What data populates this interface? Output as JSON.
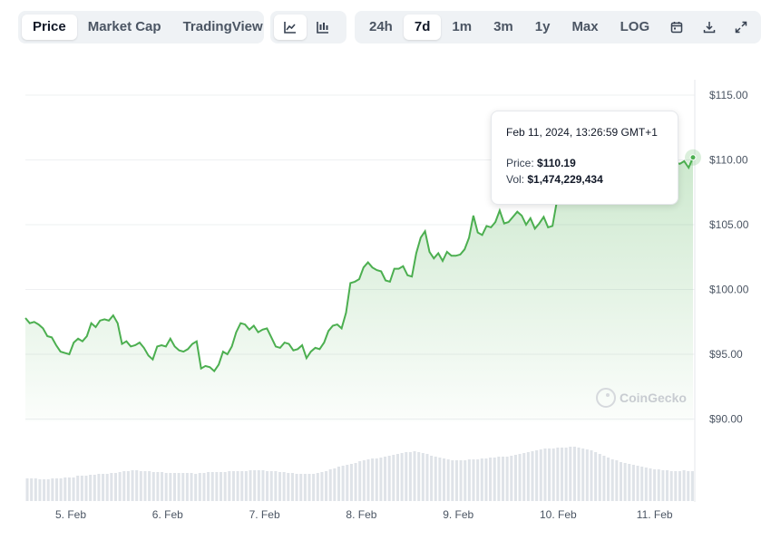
{
  "toolbar": {
    "view_tabs": [
      {
        "label": "Price",
        "active": true
      },
      {
        "label": "Market Cap",
        "active": false
      },
      {
        "label": "TradingView",
        "active": false
      }
    ],
    "chart_style_icons": [
      {
        "icon": "line-chart-icon",
        "active": true
      },
      {
        "icon": "candlestick-chart-icon",
        "active": false
      }
    ],
    "range_tabs": [
      {
        "label": "24h",
        "active": false
      },
      {
        "label": "7d",
        "active": true
      },
      {
        "label": "1m",
        "active": false
      },
      {
        "label": "3m",
        "active": false
      },
      {
        "label": "1y",
        "active": false
      },
      {
        "label": "Max",
        "active": false
      },
      {
        "label": "LOG",
        "active": false
      }
    ],
    "action_icons": [
      "calendar-icon",
      "download-icon",
      "expand-icon"
    ]
  },
  "tooltip": {
    "date": "Feb 11, 2024, 13:26:59 GMT+1",
    "price_label": "Price:",
    "price_value": "$110.19",
    "vol_label": "Vol:",
    "vol_value": "$1,474,229,434"
  },
  "watermark": "CoinGecko",
  "colors": {
    "line": "#4caf50",
    "fill": "#4caf50",
    "volume": "#dfe3e8",
    "grid": "#eef0f2"
  },
  "chart_data": {
    "type": "line",
    "y_axis_position": "right",
    "ylim": [
      85,
      115
    ],
    "yticks": [
      90,
      95,
      100,
      105,
      110,
      115
    ],
    "ytick_labels": [
      "$90.00",
      "$95.00",
      "$100.00",
      "$105.00",
      "$110.00",
      "$115.00"
    ],
    "x_range": [
      "Feb 4 14:00",
      "Feb 11 13:27"
    ],
    "x_ticks": [
      "5. Feb",
      "6. Feb",
      "7. Feb",
      "8. Feb",
      "9. Feb",
      "10. Feb",
      "11. Feb"
    ],
    "series": [
      {
        "values": [
          97.8,
          97.4,
          97.5,
          97.3,
          97.0,
          96.4,
          96.3,
          95.7,
          95.2,
          95.1,
          95.0,
          95.9,
          96.2,
          96.0,
          96.4,
          97.4,
          97.1,
          97.6,
          97.7,
          97.6,
          98.0,
          97.4,
          95.8,
          96.0,
          95.6,
          95.7,
          95.9,
          95.5,
          94.9,
          94.6,
          95.6,
          95.7,
          95.6,
          96.2,
          95.6,
          95.3,
          95.2,
          95.4,
          95.8,
          96.0,
          93.9,
          94.1,
          94.0,
          93.7,
          94.2,
          95.2,
          95.0,
          95.6,
          96.7,
          97.4,
          97.3,
          96.9,
          97.2,
          96.7,
          96.9,
          97.0,
          96.3,
          95.6,
          95.5,
          95.9,
          95.8,
          95.3,
          95.4,
          95.7,
          94.7,
          95.2,
          95.5,
          95.4,
          95.9,
          96.8,
          97.2,
          97.3,
          97.0,
          98.2,
          100.5,
          100.6,
          100.8,
          101.7,
          102.1,
          101.7,
          101.5,
          101.4,
          100.7,
          100.6,
          101.6,
          101.6,
          101.8,
          101.1,
          101.0,
          102.8,
          104.0,
          104.5,
          102.9,
          102.4,
          102.8,
          102.2,
          102.9,
          102.6,
          102.6,
          102.7,
          103.1,
          104.0,
          105.7,
          104.4,
          104.2,
          104.9,
          104.8,
          105.2,
          106.1,
          105.1,
          105.2,
          105.6,
          106.0,
          105.7,
          105.0,
          105.5,
          104.7,
          105.1,
          105.6,
          104.8,
          104.9,
          106.8,
          107.6,
          108.2,
          108.7,
          109.2,
          109.4,
          109.5,
          109.6,
          109.8,
          109.7,
          109.9,
          109.6,
          109.8,
          110.0,
          109.9,
          109.7,
          109.8,
          110.0,
          109.9,
          110.1,
          109.9,
          110.0,
          109.8,
          110.0,
          110.1,
          109.9,
          110.0,
          109.8,
          109.7,
          109.9,
          109.4,
          110.19
        ]
      }
    ],
    "volume": [
      25,
      25,
      25,
      24,
      24,
      24,
      25,
      25,
      25,
      26,
      26,
      26,
      28,
      28,
      28,
      29,
      29,
      30,
      30,
      30,
      31,
      31,
      32,
      33,
      33,
      34,
      34,
      33,
      33,
      33,
      32,
      32,
      32,
      31,
      31,
      31,
      31,
      31,
      31,
      31,
      30,
      31,
      31,
      32,
      32,
      32,
      32,
      32,
      33,
      33,
      33,
      33,
      33,
      34,
      34,
      34,
      34,
      33,
      33,
      33,
      32,
      32,
      31,
      31,
      30,
      30,
      30,
      30,
      30,
      31,
      32,
      33,
      35,
      36,
      38,
      39,
      40,
      41,
      42,
      44,
      45,
      46,
      47,
      47,
      48,
      49,
      50,
      51,
      52,
      53,
      54,
      54,
      55,
      54,
      53,
      52,
      50,
      49,
      48,
      47,
      46,
      45,
      45,
      45,
      45,
      46,
      46,
      46,
      47,
      47,
      48,
      48,
      49,
      49,
      49,
      50,
      51,
      52,
      53,
      54,
      55,
      56,
      57,
      58,
      58,
      58,
      59,
      59,
      59,
      60,
      60,
      59,
      58,
      57,
      56,
      54,
      52,
      50,
      48,
      46,
      45,
      43,
      42,
      41,
      40,
      39,
      38,
      37,
      36,
      35,
      35,
      34,
      34,
      33,
      33,
      33,
      34,
      33,
      33
    ],
    "hover_point": {
      "x": "Feb 11 13:27",
      "y": 110.19
    }
  }
}
